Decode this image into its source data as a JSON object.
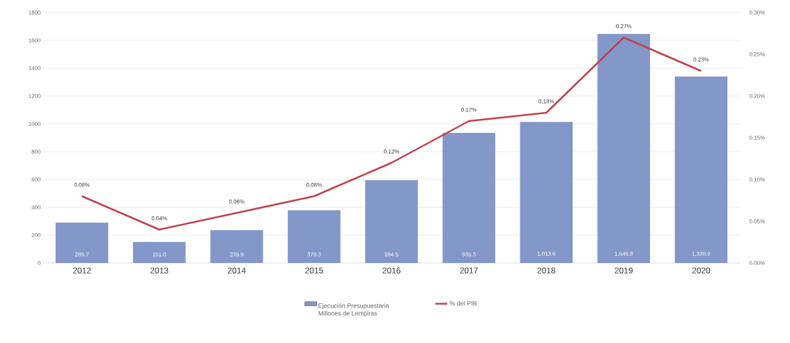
{
  "chart_data": {
    "type": "bar",
    "categories": [
      "2012",
      "2013",
      "2014",
      "2015",
      "2016",
      "2017",
      "2018",
      "2019",
      "2020"
    ],
    "series": [
      {
        "name": "Ejecución Presupuestaria Millones de Lempiras",
        "color": "#8497c9",
        "values": [
          289.7,
          151.0,
          235.9,
          379.3,
          594.5,
          935.3,
          1013.6,
          1646.8,
          1339.9
        ],
        "value_labels": [
          "289.7",
          "151.0",
          "235.9",
          "379.3",
          "594.5",
          "935.3",
          "1,013.6",
          "1,646.8",
          "1,339.9"
        ]
      },
      {
        "name": "% del PIB",
        "type": "line",
        "axis": "y2",
        "color": "#c0404a",
        "values": [
          0.08,
          0.04,
          0.06,
          0.08,
          0.12,
          0.17,
          0.18,
          0.27,
          0.23
        ],
        "value_labels": [
          "0.08%",
          "0.04%",
          "0.06%",
          "0.08%",
          "0.12%",
          "0.17%",
          "0.18%",
          "0.27%",
          "0.23%"
        ]
      }
    ],
    "ylim": [
      0,
      1800
    ],
    "yticks": [
      0,
      200,
      400,
      600,
      800,
      1000,
      1200,
      1400,
      1600,
      1800
    ],
    "y2lim": [
      0,
      0.3
    ],
    "y2ticks": [
      {
        "value": 0,
        "label": "0.00%"
      },
      {
        "value": 0.05,
        "label": "0.05%"
      },
      {
        "value": 0.1,
        "label": "0.10%"
      },
      {
        "value": 0.15,
        "label": "0.15%"
      },
      {
        "value": 0.2,
        "label": "0.20%"
      },
      {
        "value": 0.25,
        "label": "0.25%"
      },
      {
        "value": 0.3,
        "label": "0.30%"
      }
    ],
    "grid": "y",
    "legend": "bottom",
    "marker": "none",
    "line_style": "solid"
  }
}
